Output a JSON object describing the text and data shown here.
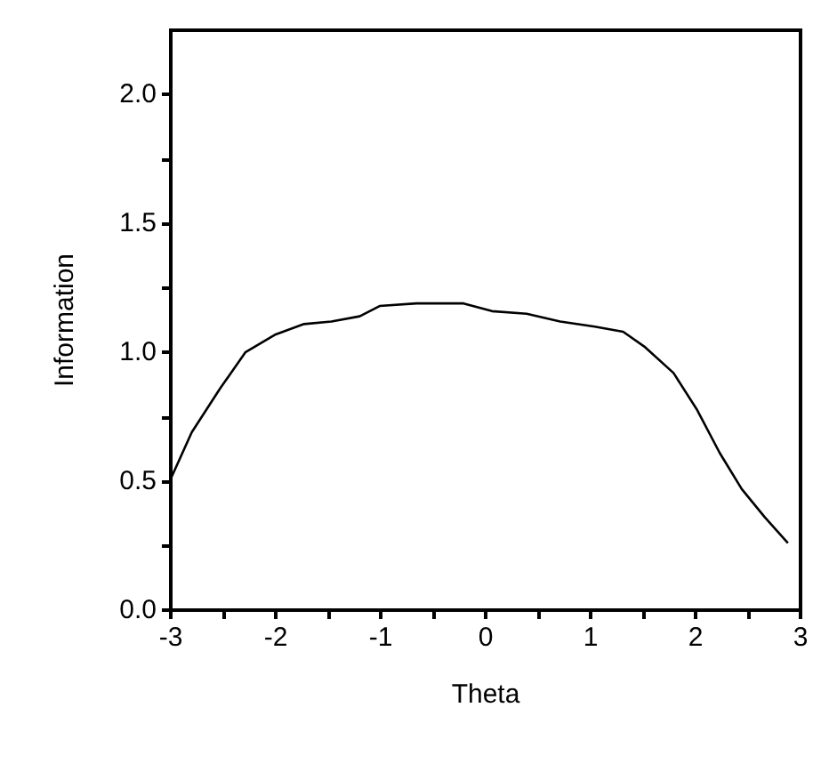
{
  "chart_data": {
    "type": "line",
    "xlabel": "Theta",
    "ylabel": "Information",
    "x": [
      -3,
      -2.8,
      -2.53,
      -2.29,
      -2.0,
      -1.73,
      -1.47,
      -1.2,
      -1.01,
      -0.66,
      -0.21,
      0.06,
      0.39,
      0.71,
      1.04,
      1.31,
      1.52,
      1.79,
      2.01,
      2.23,
      2.44,
      2.66,
      2.88
    ],
    "series": [
      {
        "color": "#000000",
        "values": [
          0.51,
          0.69,
          0.86,
          1.0,
          1.07,
          1.11,
          1.12,
          1.14,
          1.18,
          1.19,
          1.19,
          1.16,
          1.15,
          1.12,
          1.1,
          1.08,
          1.02,
          0.92,
          0.78,
          0.61,
          0.47,
          0.36,
          0.26
        ]
      }
    ],
    "xlim": [
      -3,
      3
    ],
    "xticks": [
      -3,
      {
        "value": -2.5,
        "label": null
      },
      -2,
      {
        "value": -1.5,
        "label": null
      },
      -1,
      {
        "value": -0.5,
        "label": null
      },
      0,
      {
        "value": 0.5,
        "label": null
      },
      1,
      {
        "value": 1.5,
        "label": null
      },
      2,
      {
        "value": 2.5,
        "label": null
      },
      3
    ],
    "ylim": [
      0,
      2.25
    ],
    "yticks": [
      {
        "value": 0,
        "label": "0.0"
      },
      {
        "value": 0.25,
        "label": null
      },
      {
        "value": 0.5,
        "label": "0.5"
      },
      {
        "value": 0.75,
        "label": null
      },
      {
        "value": 1,
        "label": "1.0"
      },
      {
        "value": 1.25,
        "label": null
      },
      {
        "value": 1.5,
        "label": "1.5"
      },
      {
        "value": 1.75,
        "label": null
      },
      {
        "value": 2,
        "label": "2.0"
      }
    ],
    "grid": false,
    "marker": "none",
    "line_style": "solid"
  }
}
